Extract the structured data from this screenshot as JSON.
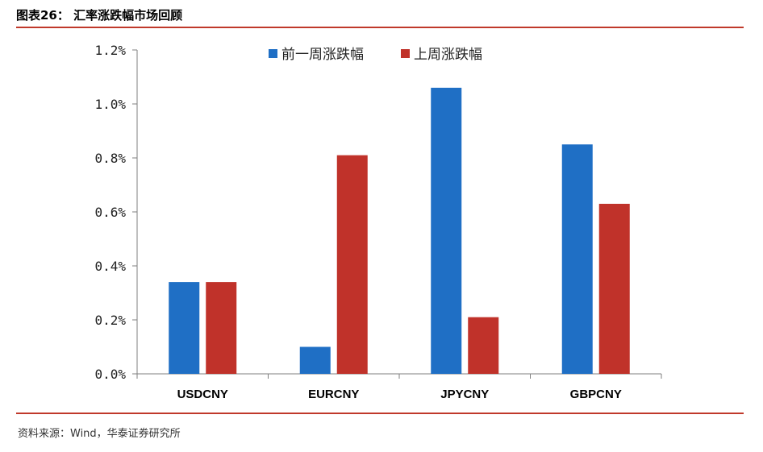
{
  "figure": {
    "title": "图表26：  汇率涨跌幅市场回顾",
    "source": "资料来源：Wind，华泰证券研究所",
    "rule_color": "#C0392B"
  },
  "chart_data": {
    "type": "bar",
    "title": "",
    "xlabel": "",
    "ylabel": "",
    "categories": [
      "USDCNY",
      "EURCNY",
      "JPYCNY",
      "GBPCNY"
    ],
    "series": [
      {
        "name": "前一周涨跌幅",
        "color": "#1F6FC5",
        "values": [
          0.34,
          0.1,
          1.06,
          0.85
        ]
      },
      {
        "name": "上周涨跌幅",
        "color": "#C0322A",
        "values": [
          0.34,
          0.81,
          0.21,
          0.63
        ]
      }
    ],
    "ylim": [
      0,
      1.2
    ],
    "yticks": [
      "0.0%",
      "0.2%",
      "0.4%",
      "0.6%",
      "0.8%",
      "1.0%",
      "1.2%"
    ],
    "grid": false,
    "legend_position": "top-center"
  }
}
